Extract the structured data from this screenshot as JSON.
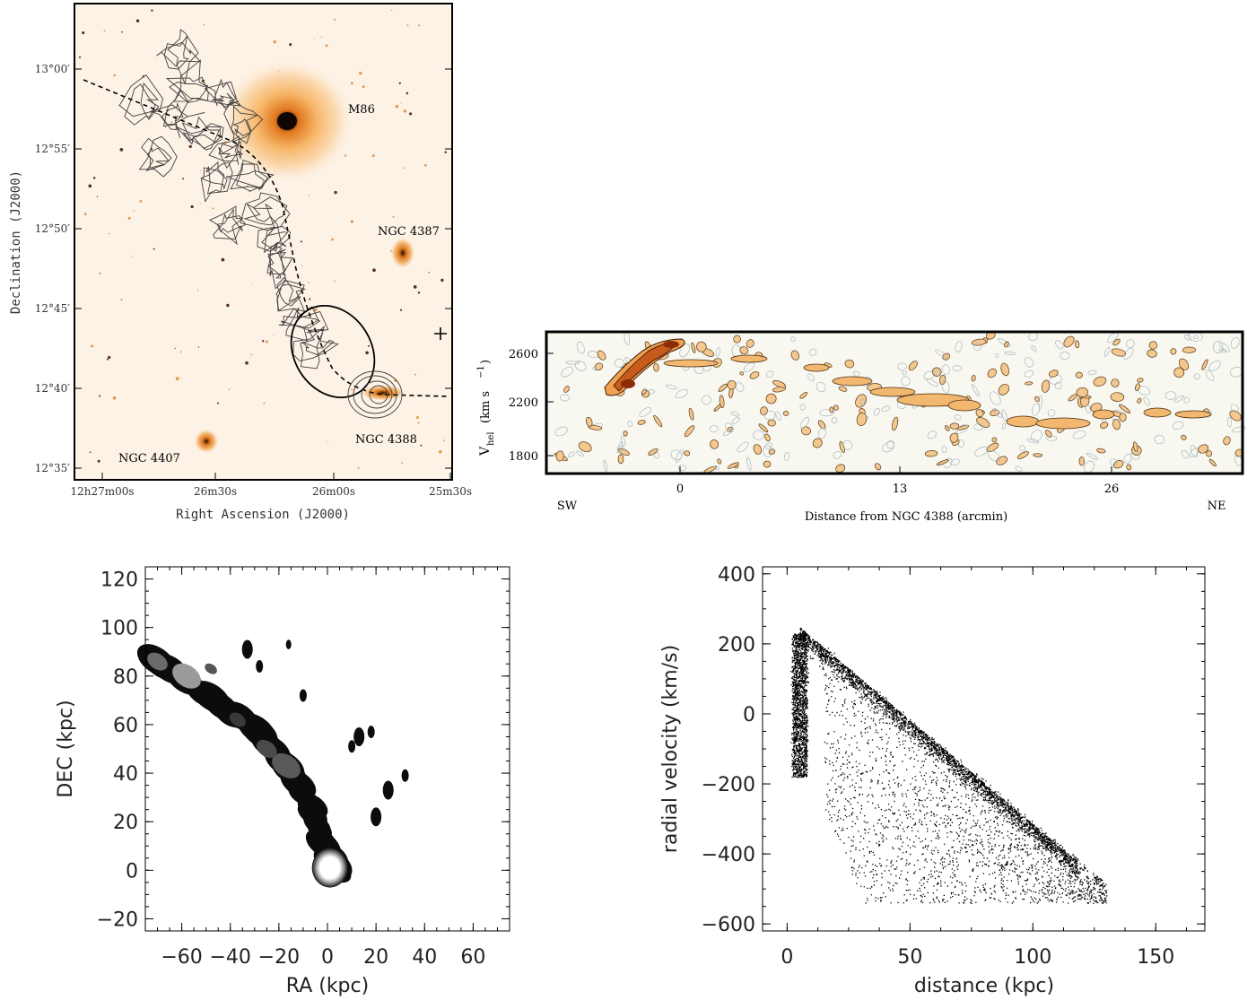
{
  "panels": [
    {
      "id": "a",
      "type": "sky-image",
      "xlabel": "Right Ascension (J2000)",
      "ylabel": "Declination (J2000)",
      "xticks": [
        "12h27m00s",
        "26m30s",
        "26m00s",
        "25m30s"
      ],
      "yticks": [
        "13°00′",
        "12°55′",
        "12°50′",
        "12°45′",
        "12°40′",
        "12°35′"
      ],
      "labels": [
        "M86",
        "NGC 4387",
        "NGC 4388",
        "NGC 4407"
      ],
      "colors": {
        "background": "#fdf2e6",
        "glow": "#f5a040",
        "core": "#1a0a05",
        "contour": "#404040"
      }
    },
    {
      "id": "b",
      "type": "position-velocity",
      "ylabel_main": "V",
      "ylabel_sub": "hel",
      "ylabel_unit": "(km s",
      "ylabel_exp": "−1",
      "ylabel_close": ")",
      "xlabel": "Distance from NGC 4388 (arcmin)",
      "xticks": [
        "0",
        "13",
        "26"
      ],
      "yticks": [
        "2600",
        "2200",
        "1800"
      ],
      "left_label": "SW",
      "right_label": "NE",
      "colors": {
        "background": "#f8f8f0",
        "emission": "#e07a2a",
        "strong": "#a83d10",
        "noise": "#b0bcc4"
      }
    }
  ],
  "chart_data": [
    {
      "type": "heatmap",
      "xlabel": "RA (kpc)",
      "ylabel": "DEC (kpc)",
      "xlim": [
        -75,
        75
      ],
      "ylim": [
        -25,
        125
      ],
      "xticks": [
        -60,
        -40,
        -20,
        0,
        20,
        40,
        60
      ],
      "yticks": [
        -20,
        0,
        20,
        40,
        60,
        80,
        100,
        120
      ],
      "xtick_labels": [
        "−60",
        "−40",
        "−20",
        "0",
        "20",
        "40",
        "60"
      ],
      "ytick_labels": [
        "−20",
        "0",
        "20",
        "40",
        "60",
        "80",
        "100",
        "120"
      ],
      "ridge": [
        [
          -72,
          87
        ],
        [
          -60,
          80
        ],
        [
          -50,
          72
        ],
        [
          -40,
          65
        ],
        [
          -30,
          58
        ],
        [
          -22,
          50
        ],
        [
          -15,
          40
        ],
        [
          -8,
          28
        ],
        [
          -3,
          15
        ],
        [
          2,
          4
        ],
        [
          3,
          0
        ]
      ],
      "blobs": [
        [
          1,
          1
        ],
        [
          -17,
          43
        ],
        [
          -58,
          80
        ],
        [
          -70,
          86
        ],
        [
          -48,
          83
        ],
        [
          -37,
          62
        ],
        [
          -25,
          55
        ],
        [
          -10,
          30
        ],
        [
          -3,
          20
        ],
        [
          13,
          55
        ],
        [
          10,
          50
        ],
        [
          25,
          35
        ],
        [
          17,
          23
        ],
        [
          32,
          39
        ],
        [
          -10,
          72
        ],
        [
          -33,
          92
        ]
      ]
    },
    {
      "type": "scatter",
      "xlabel": "distance (kpc)",
      "ylabel": "radial velocity (km/s)",
      "xlim": [
        -10,
        170
      ],
      "ylim": [
        -620,
        420
      ],
      "xticks": [
        0,
        50,
        100,
        150
      ],
      "yticks": [
        -600,
        -400,
        -200,
        0,
        200,
        400
      ],
      "xtick_labels": [
        "0",
        "50",
        "100",
        "150"
      ],
      "ytick_labels": [
        "−600",
        "−400",
        "−200",
        "0",
        "200",
        "400"
      ],
      "upper_edge": [
        [
          3,
          270
        ],
        [
          133,
          -500
        ]
      ],
      "dense_band": [
        [
          5,
          150
        ],
        [
          20,
          30
        ],
        [
          50,
          -120
        ],
        [
          75,
          -240
        ],
        [
          100,
          -350
        ],
        [
          115,
          -450
        ]
      ],
      "lower_edge": [
        [
          10,
          -180
        ],
        [
          30,
          -520
        ],
        [
          100,
          -520
        ]
      ],
      "column": {
        "x": [
          0,
          8
        ],
        "y": [
          -180,
          230
        ]
      }
    }
  ]
}
